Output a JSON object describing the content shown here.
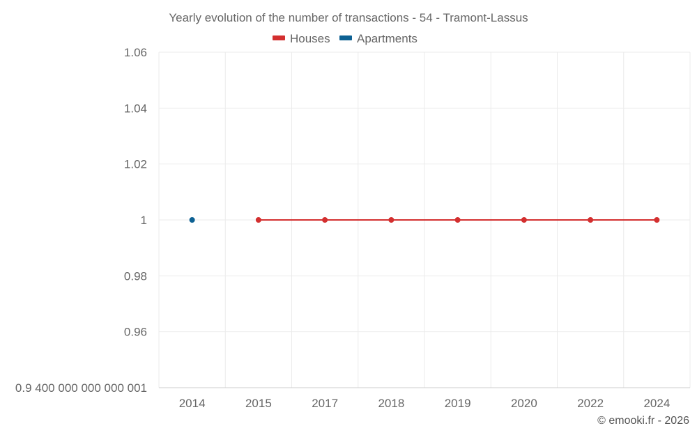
{
  "chart_data": {
    "type": "line",
    "title": "Yearly evolution of the number of transactions - 54 - Tramont-Lassus",
    "categories": [
      "2014",
      "2015",
      "2017",
      "2018",
      "2019",
      "2020",
      "2022",
      "2024"
    ],
    "series": [
      {
        "name": "Houses",
        "color": "#d32f2f",
        "values": [
          null,
          1,
          1,
          1,
          1,
          1,
          1,
          1
        ]
      },
      {
        "name": "Apartments",
        "color": "#0d6193",
        "values": [
          1,
          null,
          null,
          null,
          null,
          null,
          null,
          null
        ]
      }
    ],
    "y_ticks": [
      {
        "value": 0.94,
        "label": "0.9 400 000 000 000 001"
      },
      {
        "value": 0.96,
        "label": "0.96"
      },
      {
        "value": 0.98,
        "label": "0.98"
      },
      {
        "value": 1.0,
        "label": "1"
      },
      {
        "value": 1.02,
        "label": "1.02"
      },
      {
        "value": 1.04,
        "label": "1.04"
      },
      {
        "value": 1.06,
        "label": "1.06"
      }
    ],
    "ylim": [
      0.94,
      1.06
    ],
    "xlabel": "",
    "ylabel": "",
    "grid": true,
    "legend_position": "top-center"
  },
  "credit": "© emooki.fr - 2026"
}
